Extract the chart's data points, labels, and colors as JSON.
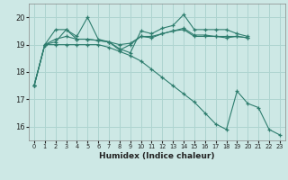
{
  "xlabel": "Humidex (Indice chaleur)",
  "x": [
    0,
    1,
    2,
    3,
    4,
    5,
    6,
    7,
    8,
    9,
    10,
    11,
    12,
    13,
    14,
    15,
    16,
    17,
    18,
    19,
    20,
    21,
    22,
    23
  ],
  "line1": [
    17.5,
    19.0,
    19.55,
    19.55,
    19.3,
    20.0,
    19.2,
    19.1,
    18.85,
    18.7,
    19.5,
    19.4,
    19.6,
    19.7,
    20.1,
    19.55,
    19.55,
    19.55,
    19.55,
    19.4,
    19.3,
    null,
    null,
    null
  ],
  "line2": [
    17.5,
    19.0,
    19.2,
    19.3,
    19.2,
    19.2,
    19.15,
    19.1,
    19.0,
    19.05,
    19.3,
    19.3,
    19.4,
    19.5,
    19.6,
    19.35,
    19.35,
    19.3,
    19.3,
    19.3,
    19.25,
    null,
    null,
    null
  ],
  "line3": [
    17.5,
    19.0,
    19.1,
    19.55,
    19.2,
    19.2,
    19.15,
    19.1,
    18.8,
    19.0,
    19.3,
    19.25,
    19.4,
    19.5,
    19.55,
    19.3,
    19.3,
    19.3,
    19.25,
    19.3,
    19.25,
    null,
    null,
    null
  ],
  "line4": [
    17.5,
    19.0,
    19.0,
    19.0,
    19.0,
    19.0,
    19.0,
    18.9,
    18.75,
    18.6,
    18.4,
    18.1,
    17.8,
    17.5,
    17.2,
    16.9,
    16.5,
    16.1,
    15.9,
    17.3,
    16.85,
    16.7,
    15.9,
    15.7
  ],
  "bg_color": "#cde8e5",
  "grid_color": "#aed4d0",
  "line_color": "#2e7d6e",
  "ylim": [
    15.5,
    20.5
  ],
  "yticks": [
    16,
    17,
    18,
    19,
    20
  ],
  "xlim": [
    -0.5,
    23.5
  ],
  "xtick_labels": [
    "0",
    "1",
    "2",
    "3",
    "4",
    "5",
    "6",
    "7",
    "8",
    "9",
    "10",
    "11",
    "12",
    "13",
    "14",
    "15",
    "16",
    "17",
    "18",
    "19",
    "20",
    "21",
    "22",
    "23"
  ]
}
